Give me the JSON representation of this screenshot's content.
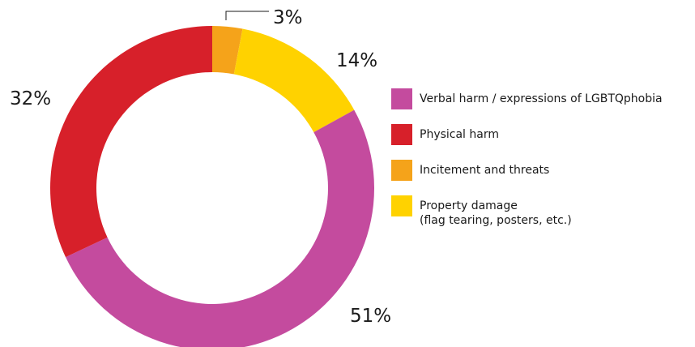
{
  "chart_data": {
    "type": "pie",
    "variant": "donut",
    "categories": [
      "Incitement and threats",
      "Property damage (flag tearing, posters, etc.)",
      "Verbal harm / expressions of LGBTQphobia",
      "Physical harm"
    ],
    "values": [
      3,
      14,
      51,
      32
    ],
    "colors": [
      "#F5A31A",
      "#FFD200",
      "#C44B9E",
      "#D7202A"
    ],
    "data_labels": [
      "3%",
      "14%",
      "51%",
      "32%"
    ],
    "title": "",
    "legend_position": "right"
  },
  "legend": {
    "items": [
      {
        "lines": [
          "Verbal harm / expressions of LGBTQphobia"
        ],
        "color": "#C44B9E"
      },
      {
        "lines": [
          "Physical harm"
        ],
        "color": "#D7202A"
      },
      {
        "lines": [
          "Incitement and threats"
        ],
        "color": "#F5A31A"
      },
      {
        "lines": [
          "Property damage",
          "(flag tearing, posters, etc.)"
        ],
        "color": "#FFD200"
      }
    ]
  }
}
